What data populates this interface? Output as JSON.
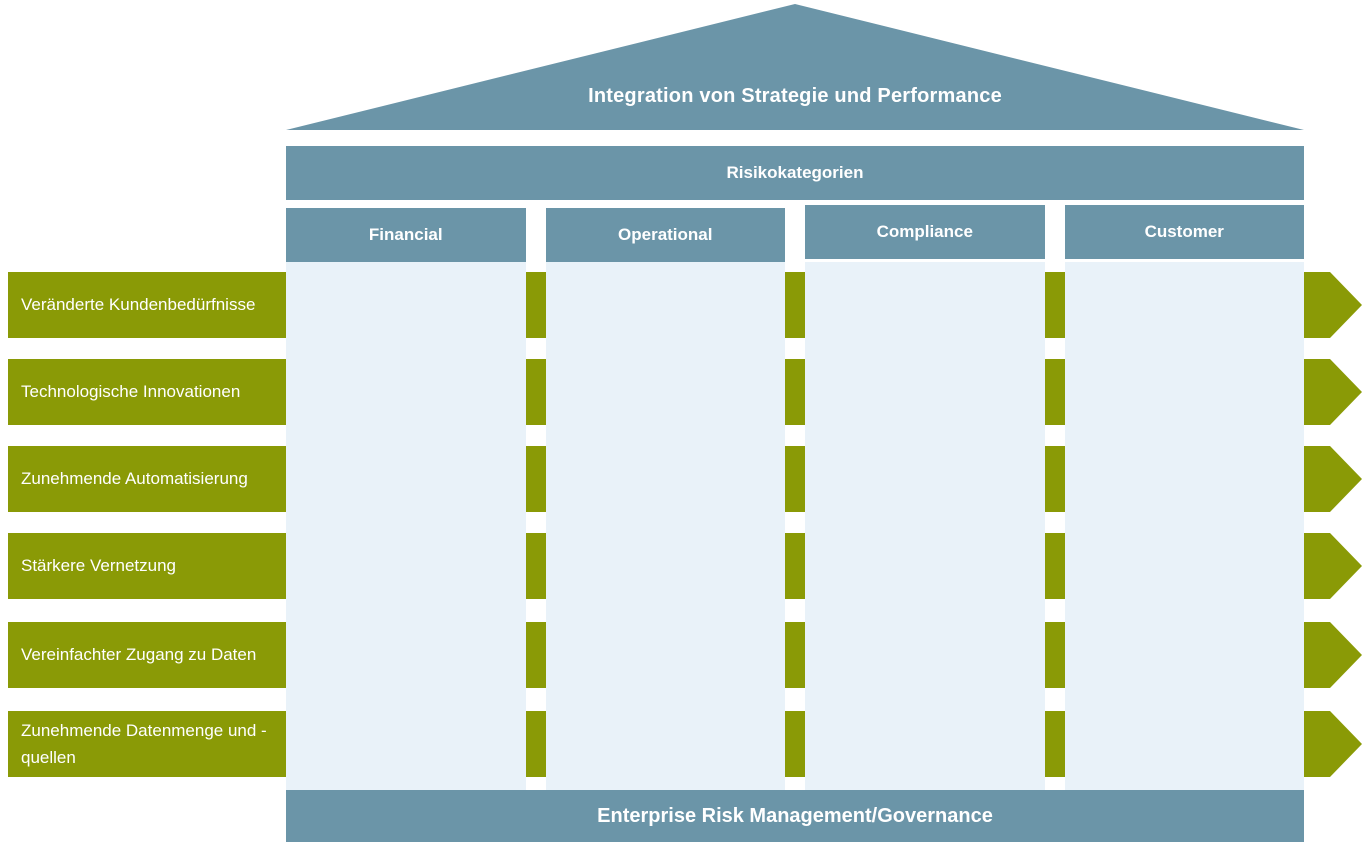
{
  "diagram": {
    "roof": {
      "label": "Integration von Strategie und Performance"
    },
    "risk_bar": {
      "label": "Risikokategorien"
    },
    "columns": [
      {
        "label": "Financial"
      },
      {
        "label": "Operational"
      },
      {
        "label": "Compliance"
      },
      {
        "label": "Customer"
      }
    ],
    "drivers": [
      {
        "label": "Veränderte Kundenbedürfnisse"
      },
      {
        "label": "Technologische Innovationen"
      },
      {
        "label": "Zunehmende Automatisierung"
      },
      {
        "label": "Stärkere Vernetzung"
      },
      {
        "label": "Vereinfachter Zugang zu Daten"
      },
      {
        "label": "Zunehmende Datenmenge und -quellen"
      }
    ],
    "foundation": {
      "label": "Enterprise Risk Management/Governance"
    },
    "colors": {
      "structure": "#6b95a8",
      "pillar": "#e9f2f9",
      "driver": "#8a9a06",
      "ontext": "#ffffff"
    }
  }
}
